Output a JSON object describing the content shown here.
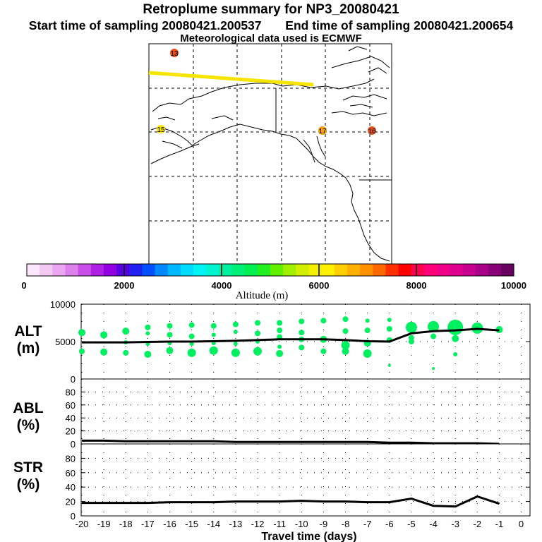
{
  "header": {
    "title": "Retroplume summary for NP3_20080421",
    "start_label": "Start time of sampling 20080421.200537",
    "end_label": "End time of sampling 20080421.200654",
    "met_label": "Meteorological data used is ECMWF"
  },
  "map": {
    "day_markers": [
      {
        "label": "13",
        "color": "#e8501a"
      },
      {
        "label": "15",
        "color": "#f7e600"
      },
      {
        "label": "17",
        "color": "#f7a000"
      },
      {
        "label": "16",
        "color": "#e8501a"
      }
    ],
    "track_color": "#f5e500"
  },
  "colorbar": {
    "label": "Altitude (m)",
    "ticks": [
      "0",
      "2000",
      "4000",
      "6000",
      "8000",
      "10000"
    ],
    "colors": [
      "#fbe6fb",
      "#f3c8f3",
      "#eaa6f0",
      "#dc80ec",
      "#c850e8",
      "#b020e4",
      "#9000e0",
      "#5800e0",
      "#2020f0",
      "#0050ff",
      "#0088ff",
      "#00b8ff",
      "#00dcff",
      "#00f4f4",
      "#00f4d0",
      "#00f0a0",
      "#00f078",
      "#00f050",
      "#20f020",
      "#60f000",
      "#a0f000",
      "#d0f000",
      "#f4f000",
      "#fff000",
      "#ffd000",
      "#ffb000",
      "#ff9000",
      "#ff6800",
      "#ff3000",
      "#ff0000",
      "#ff0050",
      "#ff0078",
      "#f00088",
      "#e00090",
      "#c80090",
      "#a80088",
      "#880078",
      "#680060"
    ]
  },
  "chart_data": [
    {
      "type": "line",
      "panel": "ALT",
      "ylabel_main": "ALT",
      "ylabel_unit": "(m)",
      "ylim": [
        0,
        10000
      ],
      "yticks": [
        "0",
        "5000",
        "10000"
      ],
      "x": [
        -20,
        -19,
        -18,
        -17,
        -16,
        -15,
        -14,
        -13,
        -12,
        -11,
        -10,
        -9,
        -8,
        -7,
        -6,
        -5,
        -4,
        -3,
        -2,
        -1
      ],
      "mean_altitude": [
        4900,
        4900,
        4900,
        4950,
        5000,
        5000,
        5050,
        5100,
        5200,
        5300,
        5300,
        5300,
        5200,
        5050,
        5000,
        6100,
        6400,
        6500,
        6700,
        6500
      ],
      "cluster_color": "#00f060",
      "clusters": [
        {
          "x": -20,
          "alt": [
            6200,
            3700
          ],
          "size": [
            5,
            4
          ]
        },
        {
          "x": -19,
          "alt": [
            5900,
            3600
          ],
          "size": [
            5,
            5
          ]
        },
        {
          "x": -18,
          "alt": [
            6400,
            4900,
            3500
          ],
          "size": [
            5,
            3,
            4
          ]
        },
        {
          "x": -17,
          "alt": [
            6900,
            6100,
            4700,
            3300
          ],
          "size": [
            4,
            3,
            3,
            5
          ]
        },
        {
          "x": -16,
          "alt": [
            7100,
            5900,
            4800,
            3800
          ],
          "size": [
            4,
            4,
            3,
            5
          ]
        },
        {
          "x": -15,
          "alt": [
            7200,
            5700,
            4700,
            3500
          ],
          "size": [
            4,
            4,
            3,
            6
          ]
        },
        {
          "x": -14,
          "alt": [
            7100,
            5900,
            4800,
            3800
          ],
          "size": [
            4,
            3,
            3,
            6
          ]
        },
        {
          "x": -13,
          "alt": [
            7300,
            6300,
            4700,
            3500
          ],
          "size": [
            4,
            3,
            3,
            6
          ]
        },
        {
          "x": -12,
          "alt": [
            7500,
            6100,
            5000,
            3700
          ],
          "size": [
            4,
            4,
            3,
            6
          ]
        },
        {
          "x": -11,
          "alt": [
            7500,
            6500,
            5600,
            4300,
            3400
          ],
          "size": [
            4,
            4,
            4,
            3,
            5
          ]
        },
        {
          "x": -10,
          "alt": [
            7700,
            6200,
            5300,
            4200
          ],
          "size": [
            4,
            4,
            4,
            4
          ]
        },
        {
          "x": -9,
          "alt": [
            7800,
            5300,
            3700
          ],
          "size": [
            4,
            5,
            4
          ]
        },
        {
          "x": -8,
          "alt": [
            8000,
            6400,
            4500,
            3700
          ],
          "size": [
            4,
            4,
            6,
            5
          ]
        },
        {
          "x": -7,
          "alt": [
            7800,
            6500,
            4800,
            3400
          ],
          "size": [
            3,
            4,
            5,
            6
          ]
        },
        {
          "x": -6,
          "alt": [
            7900,
            6700,
            5200,
            1800
          ],
          "size": [
            3,
            4,
            4,
            2
          ]
        },
        {
          "x": -5,
          "alt": [
            6900,
            5500,
            5000
          ],
          "size": [
            8,
            4,
            4
          ]
        },
        {
          "x": -4,
          "alt": [
            7000,
            5700,
            1400
          ],
          "size": [
            8,
            4,
            2
          ]
        },
        {
          "x": -3,
          "alt": [
            6900,
            5400,
            3300
          ],
          "size": [
            11,
            5,
            3
          ]
        },
        {
          "x": -2,
          "alt": [
            6800
          ],
          "size": [
            8
          ]
        },
        {
          "x": -1,
          "alt": [
            6600
          ],
          "size": [
            5
          ]
        }
      ]
    },
    {
      "type": "line",
      "panel": "ABL",
      "ylabel_main": "ABL",
      "ylabel_unit": "(%)",
      "ylim": [
        0,
        100
      ],
      "yticks": [
        "0",
        "20",
        "40",
        "60",
        "80"
      ],
      "x": [
        -20,
        -19,
        -18,
        -17,
        -16,
        -15,
        -14,
        -13,
        -12,
        -11,
        -10,
        -9,
        -8,
        -7,
        -6,
        -5,
        -4,
        -3,
        -2,
        -1
      ],
      "values": [
        5,
        5,
        4,
        4,
        4,
        4,
        4,
        3,
        3,
        3,
        3,
        3,
        3,
        3,
        2,
        2,
        1,
        1,
        1,
        0
      ]
    },
    {
      "type": "line",
      "panel": "STR",
      "ylabel_main": "STR",
      "ylabel_unit": "(%)",
      "ylim": [
        0,
        100
      ],
      "yticks": [
        "0",
        "20",
        "40",
        "60",
        "80"
      ],
      "x": [
        -20,
        -19,
        -18,
        -17,
        -16,
        -15,
        -14,
        -13,
        -12,
        -11,
        -10,
        -9,
        -8,
        -7,
        -6,
        -5,
        -4,
        -3,
        -2,
        -1
      ],
      "values": [
        18,
        18,
        18,
        18,
        19,
        19,
        19,
        20,
        20,
        20,
        21,
        20,
        20,
        19,
        19,
        24,
        14,
        13,
        27,
        17
      ],
      "xlabel": "Travel time (days)",
      "xticks": [
        "-20",
        "-19",
        "-18",
        "-17",
        "-16",
        "-15",
        "-14",
        "-13",
        "-12",
        "-11",
        "-10",
        "-9",
        "-8",
        "-7",
        "-6",
        "-5",
        "-4",
        "-3",
        "-2",
        "-1",
        "0"
      ]
    }
  ]
}
